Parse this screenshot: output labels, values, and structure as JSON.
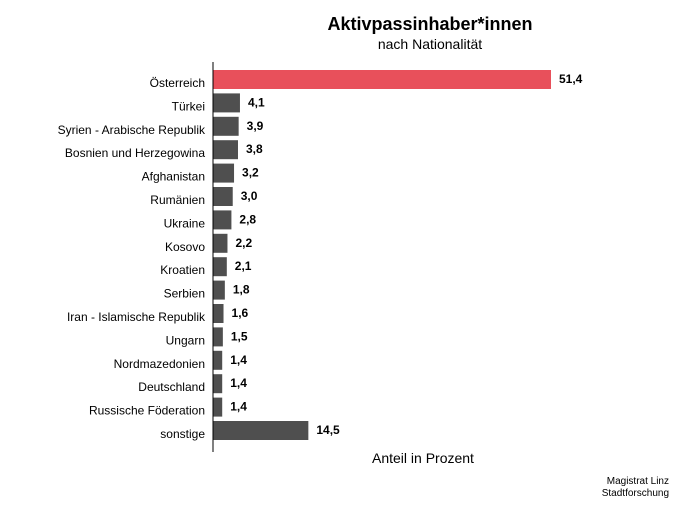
{
  "chart_data": {
    "type": "bar",
    "orientation": "horizontal",
    "title": "Aktivpassinhaber*innen",
    "subtitle": "nach Nationalität",
    "xlabel": "Anteil in Prozent",
    "ylabel": "",
    "categories": [
      "Österreich",
      "Türkei",
      "Syrien - Arabische Republik",
      "Bosnien und Herzegowina",
      "Afghanistan",
      "Rumänien",
      "Ukraine",
      "Kosovo",
      "Kroatien",
      "Serbien",
      "Iran - Islamische Republik",
      "Ungarn",
      "Nordmazedonien",
      "Deutschland",
      "Russische Föderation",
      "sonstige"
    ],
    "values": [
      51.4,
      4.1,
      3.9,
      3.8,
      3.2,
      3.0,
      2.8,
      2.2,
      2.1,
      1.8,
      1.6,
      1.5,
      1.4,
      1.4,
      1.4,
      14.5
    ],
    "value_labels": [
      "51,4",
      "4,1",
      "3,9",
      "3,8",
      "3,2",
      "3,0",
      "2,8",
      "2,2",
      "2,1",
      "1,8",
      "1,6",
      "1,5",
      "1,4",
      "1,4",
      "1,4",
      "14,5"
    ],
    "highlight_index": 0,
    "colors": {
      "highlight": "#e8505b",
      "default": "#4f4f4f",
      "axis": "#000000"
    },
    "xlim": [
      0,
      51.4
    ],
    "grid": false,
    "legend": "none"
  },
  "source": {
    "line1": "Magistrat Linz",
    "line2": "Stadtforschung"
  }
}
